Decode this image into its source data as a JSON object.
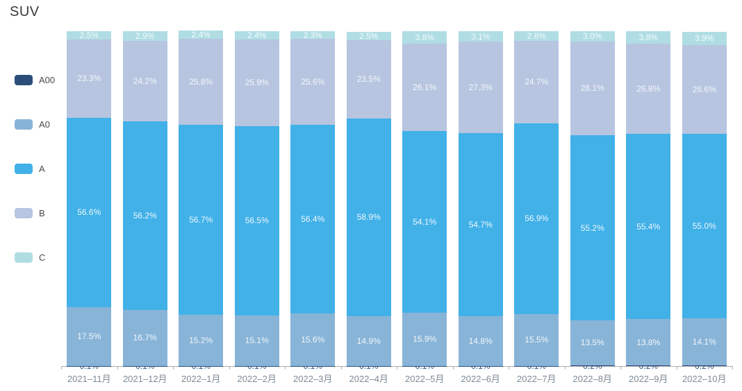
{
  "title": "SUV",
  "chart_data": {
    "type": "bar",
    "stacked": true,
    "percent_stacked": true,
    "title": "SUV",
    "legend_position": "left",
    "grid": false,
    "value_suffix": "%",
    "ylim": [
      0,
      100
    ],
    "categories": [
      "2021–11月",
      "2021–12月",
      "2022–1月",
      "2022–2月",
      "2022–3月",
      "2022–4月",
      "2022–5月",
      "2022–6月",
      "2022–7月",
      "2022–8月",
      "2022–9月",
      "2022–10月"
    ],
    "series": [
      {
        "name": "A00",
        "color": "#2b4d7a",
        "label_color": "#2b4d7a",
        "values": [
          0.1,
          0.1,
          0.1,
          0.1,
          0.1,
          0.1,
          0.1,
          0.1,
          0.1,
          0.2,
          0.2,
          0.2
        ]
      },
      {
        "name": "A0",
        "color": "#88b4d8",
        "label_color": "#f2f6fa",
        "values": [
          17.5,
          16.7,
          15.2,
          15.1,
          15.6,
          14.9,
          15.9,
          14.8,
          15.5,
          13.5,
          13.8,
          14.1
        ]
      },
      {
        "name": "A",
        "color": "#41b1e8",
        "label_color": "#eef6fc",
        "values": [
          56.6,
          56.2,
          56.7,
          56.5,
          56.4,
          58.9,
          54.1,
          54.7,
          56.9,
          55.2,
          55.4,
          55.0
        ]
      },
      {
        "name": "B",
        "color": "#b7c5e0",
        "label_color": "#f5f7fb",
        "values": [
          23.3,
          24.2,
          25.8,
          25.9,
          25.6,
          23.5,
          26.1,
          27.3,
          24.7,
          28.1,
          26.8,
          26.6
        ]
      },
      {
        "name": "C",
        "color": "#b0dde4",
        "label_color": "#f3fbfc",
        "values": [
          2.5,
          2.9,
          2.4,
          2.4,
          2.3,
          2.5,
          3.8,
          3.1,
          2.8,
          3.0,
          3.8,
          3.9
        ]
      }
    ],
    "axis_color": "#aaaaaa",
    "x_label_color": "#7d8a96"
  }
}
